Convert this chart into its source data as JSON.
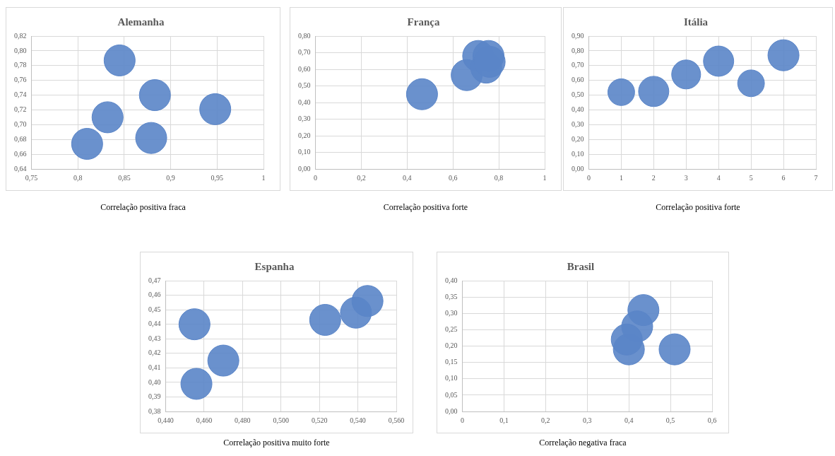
{
  "chart_data": [
    {
      "type": "bubble",
      "title": "Alemanha",
      "color": "#5a85c8",
      "grid": true,
      "annotations": [
        "Correlação positiva fraca"
      ],
      "x": [
        0.845,
        0.883,
        0.948,
        0.832,
        0.879,
        0.81
      ],
      "values": [
        0.787,
        0.74,
        0.721,
        0.71,
        0.682,
        0.674
      ],
      "sizes": [
        1,
        1,
        1,
        1,
        1,
        1
      ],
      "xlim": [
        0.75,
        1
      ],
      "xticks": [
        {
          "value": 0.75,
          "label": "0,75"
        },
        {
          "value": 0.8,
          "label": "0,8"
        },
        {
          "value": 0.85,
          "label": "0,85"
        },
        {
          "value": 0.9,
          "label": "0,9"
        },
        {
          "value": 0.95,
          "label": "0,95"
        },
        1
      ],
      "ylim": [
        0.64,
        0.82
      ],
      "yticks": [
        {
          "value": 0.64,
          "label": "0,64"
        },
        {
          "value": 0.66,
          "label": "0,66"
        },
        {
          "value": 0.68,
          "label": "0,68"
        },
        {
          "value": 0.7,
          "label": "0,70"
        },
        {
          "value": 0.72,
          "label": "0,72"
        },
        {
          "value": 0.74,
          "label": "0,74"
        },
        {
          "value": 0.76,
          "label": "0,76"
        },
        {
          "value": 0.78,
          "label": "0,78"
        },
        {
          "value": 0.8,
          "label": "0,80"
        },
        {
          "value": 0.82,
          "label": "0,82"
        }
      ]
    },
    {
      "type": "bubble",
      "title": "França",
      "color": "#5a85c8",
      "grid": true,
      "annotations": [
        "Correlação positiva forte"
      ],
      "x": [
        0.465,
        0.66,
        0.71,
        0.745,
        0.755,
        0.76
      ],
      "values": [
        0.45,
        0.565,
        0.68,
        0.61,
        0.68,
        0.645
      ],
      "sizes": [
        1,
        1,
        1,
        1,
        1,
        1
      ],
      "xlim": [
        0,
        1
      ],
      "xticks": [
        0,
        {
          "value": 0.2,
          "label": "0,2"
        },
        {
          "value": 0.4,
          "label": "0,4"
        },
        {
          "value": 0.6,
          "label": "0,6"
        },
        {
          "value": 0.8,
          "label": "0,8"
        },
        1
      ],
      "ylim": [
        0,
        0.8
      ],
      "yticks": [
        {
          "value": 0,
          "label": "0,00"
        },
        {
          "value": 0.1,
          "label": "0,10"
        },
        {
          "value": 0.2,
          "label": "0,20"
        },
        {
          "value": 0.3,
          "label": "0,30"
        },
        {
          "value": 0.4,
          "label": "0,40"
        },
        {
          "value": 0.5,
          "label": "0,50"
        },
        {
          "value": 0.6,
          "label": "0,60"
        },
        {
          "value": 0.7,
          "label": "0,70"
        },
        {
          "value": 0.8,
          "label": "0,80"
        }
      ]
    },
    {
      "type": "bubble",
      "title": "Itália",
      "color": "#5a85c8",
      "grid": true,
      "annotations": [
        "Correlação positiva forte"
      ],
      "x": [
        1,
        2,
        3,
        4,
        5,
        6
      ],
      "values": [
        0.52,
        0.525,
        0.64,
        0.73,
        0.58,
        0.77
      ],
      "sizes": [
        0.74,
        0.95,
        0.87,
        0.95,
        0.74,
        1
      ],
      "xlim": [
        0,
        7
      ],
      "xticks": [
        0,
        1,
        2,
        3,
        4,
        5,
        6,
        7
      ],
      "ylim": [
        0,
        0.9
      ],
      "yticks": [
        {
          "value": 0,
          "label": "0,00"
        },
        {
          "value": 0.1,
          "label": "0,10"
        },
        {
          "value": 0.2,
          "label": "0,20"
        },
        {
          "value": 0.3,
          "label": "0,30"
        },
        {
          "value": 0.4,
          "label": "0,40"
        },
        {
          "value": 0.5,
          "label": "0,50"
        },
        {
          "value": 0.6,
          "label": "0,60"
        },
        {
          "value": 0.7,
          "label": "0,70"
        },
        {
          "value": 0.8,
          "label": "0,80"
        },
        {
          "value": 0.9,
          "label": "0,90"
        }
      ]
    },
    {
      "type": "bubble",
      "title": "Espanha",
      "color": "#5a85c8",
      "grid": true,
      "annotations": [
        "Correlação positiva muito forte"
      ],
      "x": [
        0.455,
        0.456,
        0.47,
        0.523,
        0.539,
        0.545
      ],
      "values": [
        0.44,
        0.399,
        0.415,
        0.443,
        0.448,
        0.456
      ],
      "sizes": [
        1,
        1,
        1,
        1,
        1,
        1
      ],
      "xlim": [
        0.44,
        0.56
      ],
      "xticks": [
        {
          "value": 0.44,
          "label": "0,440"
        },
        {
          "value": 0.46,
          "label": "0,460"
        },
        {
          "value": 0.48,
          "label": "0,480"
        },
        {
          "value": 0.5,
          "label": "0,500"
        },
        {
          "value": 0.52,
          "label": "0,520"
        },
        {
          "value": 0.54,
          "label": "0,540"
        },
        {
          "value": 0.56,
          "label": "0,560"
        }
      ],
      "ylim": [
        0.38,
        0.47
      ],
      "yticks": [
        {
          "value": 0.38,
          "label": "0,38"
        },
        {
          "value": 0.39,
          "label": "0,39"
        },
        {
          "value": 0.4,
          "label": "0,40"
        },
        {
          "value": 0.41,
          "label": "0,41"
        },
        {
          "value": 0.42,
          "label": "0,42"
        },
        {
          "value": 0.43,
          "label": "0,43"
        },
        {
          "value": 0.44,
          "label": "0,44"
        },
        {
          "value": 0.45,
          "label": "0,45"
        },
        {
          "value": 0.46,
          "label": "0,46"
        },
        {
          "value": 0.47,
          "label": "0,47"
        }
      ]
    },
    {
      "type": "bubble",
      "title": "Brasil",
      "color": "#5a85c8",
      "grid": true,
      "annotations": [
        "Correlação negativa fraca"
      ],
      "x": [
        0.435,
        0.42,
        0.4,
        0.395,
        0.51
      ],
      "values": [
        0.31,
        0.26,
        0.19,
        0.22,
        0.19
      ],
      "sizes": [
        1,
        1,
        1,
        1,
        1
      ],
      "xlim": [
        0,
        0.6
      ],
      "xticks": [
        0,
        {
          "value": 0.1,
          "label": "0,1"
        },
        {
          "value": 0.2,
          "label": "0,2"
        },
        {
          "value": 0.3,
          "label": "0,3"
        },
        {
          "value": 0.4,
          "label": "0,4"
        },
        {
          "value": 0.5,
          "label": "0,5"
        },
        {
          "value": 0.6,
          "label": "0,6"
        }
      ],
      "ylim": [
        0,
        0.4
      ],
      "yticks": [
        {
          "value": 0,
          "label": "0,00"
        },
        {
          "value": 0.05,
          "label": "0,05"
        },
        {
          "value": 0.1,
          "label": "0,10"
        },
        {
          "value": 0.15,
          "label": "0,15"
        },
        {
          "value": 0.2,
          "label": "0,20"
        },
        {
          "value": 0.25,
          "label": "0,25"
        },
        {
          "value": 0.3,
          "label": "0,30"
        },
        {
          "value": 0.35,
          "label": "0,35"
        },
        {
          "value": 0.4,
          "label": "0,40"
        }
      ]
    }
  ]
}
